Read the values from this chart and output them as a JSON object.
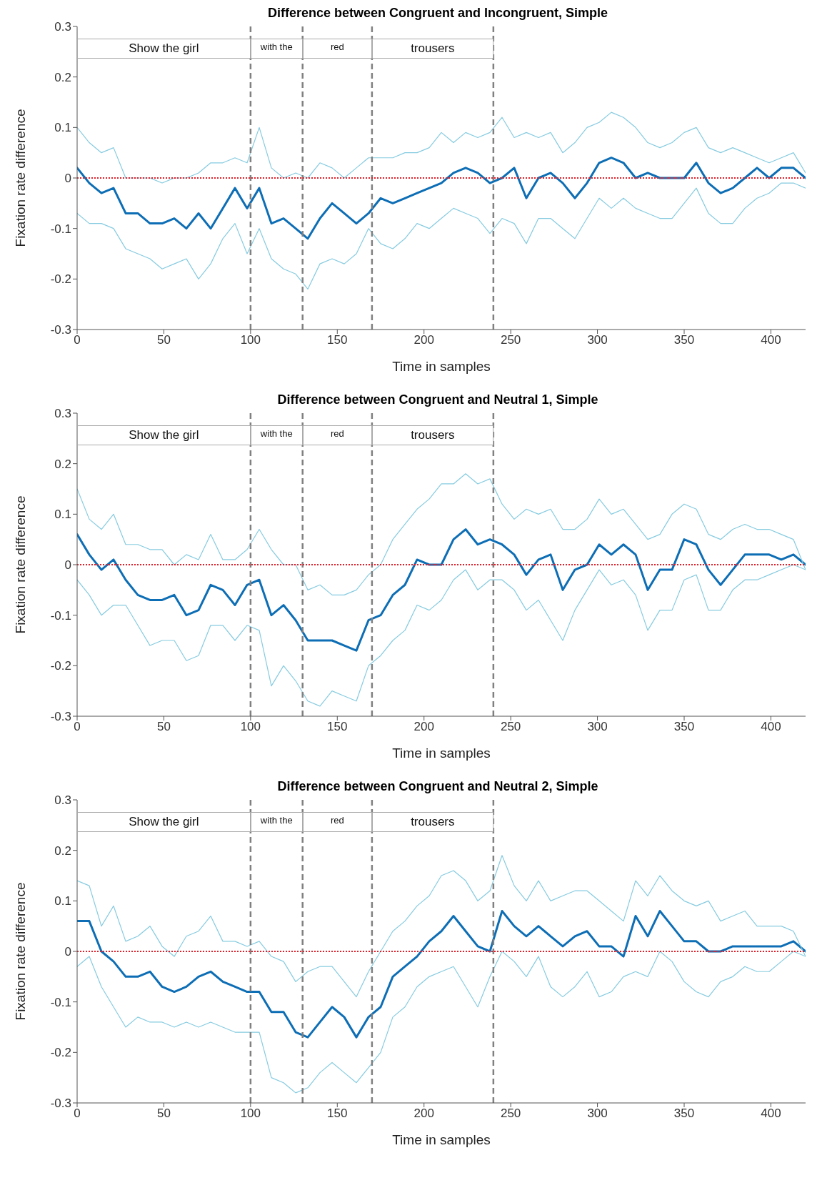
{
  "chart_data": [
    {
      "type": "line",
      "title": "Difference between Congruent and Incongruent, Simple",
      "xlabel": "Time in samples",
      "ylabel": "Fixation rate difference",
      "marker": "none",
      "grid": false,
      "xlim": [
        0,
        420
      ],
      "xticks": [
        0,
        50,
        100,
        150,
        200,
        250,
        300,
        350,
        400
      ],
      "ylim": [
        -0.3,
        0.3
      ],
      "yticks": [
        -0.3,
        -0.2,
        -0.1,
        0,
        0.1,
        0.2,
        0.3
      ],
      "x": [
        0,
        7,
        14,
        21,
        28,
        35,
        42,
        49,
        56,
        63,
        70,
        77,
        84,
        91,
        98,
        105,
        112,
        119,
        126,
        133,
        140,
        147,
        154,
        161,
        168,
        175,
        182,
        189,
        196,
        203,
        210,
        217,
        224,
        231,
        238,
        245,
        252,
        259,
        266,
        273,
        280,
        287,
        294,
        301,
        308,
        315,
        322,
        329,
        336,
        343,
        350,
        357,
        364,
        371,
        378,
        385,
        392,
        399,
        406,
        413,
        420
      ],
      "series": [
        {
          "color": "#0d6eb5",
          "values": [
            0.02,
            -0.01,
            -0.03,
            -0.02,
            -0.07,
            -0.07,
            -0.09,
            -0.09,
            -0.08,
            -0.1,
            -0.07,
            -0.1,
            -0.06,
            -0.02,
            -0.06,
            -0.02,
            -0.09,
            -0.08,
            -0.1,
            -0.12,
            -0.08,
            -0.05,
            -0.07,
            -0.09,
            -0.07,
            -0.04,
            -0.05,
            -0.04,
            -0.03,
            -0.02,
            -0.01,
            0.01,
            0.02,
            0.01,
            -0.01,
            0.0,
            0.02,
            -0.04,
            0.0,
            0.01,
            -0.01,
            -0.04,
            -0.01,
            0.03,
            0.04,
            0.03,
            0.0,
            0.01,
            0.0,
            0.0,
            0.0,
            0.03,
            -0.01,
            -0.03,
            -0.02,
            0.0,
            0.02,
            0.0,
            0.02,
            0.02,
            0.0
          ]
        },
        {
          "color": "#86cbe0",
          "values": [
            0.1,
            0.07,
            0.05,
            0.06,
            0.0,
            0.0,
            0.0,
            -0.01,
            0.0,
            0.0,
            0.01,
            0.03,
            0.03,
            0.04,
            0.03,
            0.1,
            0.02,
            0.0,
            0.01,
            0.0,
            0.03,
            0.02,
            0.0,
            0.02,
            0.04,
            0.04,
            0.04,
            0.05,
            0.05,
            0.06,
            0.09,
            0.07,
            0.09,
            0.08,
            0.09,
            0.12,
            0.08,
            0.09,
            0.08,
            0.09,
            0.05,
            0.07,
            0.1,
            0.11,
            0.13,
            0.12,
            0.1,
            0.07,
            0.06,
            0.07,
            0.09,
            0.1,
            0.06,
            0.05,
            0.06,
            0.05,
            0.04,
            0.03,
            0.04,
            0.05,
            0.01
          ]
        },
        {
          "color": "#86cbe0",
          "values": [
            -0.07,
            -0.09,
            -0.09,
            -0.1,
            -0.14,
            -0.15,
            -0.16,
            -0.18,
            -0.17,
            -0.16,
            -0.2,
            -0.17,
            -0.12,
            -0.09,
            -0.15,
            -0.1,
            -0.16,
            -0.18,
            -0.19,
            -0.22,
            -0.17,
            -0.16,
            -0.17,
            -0.15,
            -0.1,
            -0.13,
            -0.14,
            -0.12,
            -0.09,
            -0.1,
            -0.08,
            -0.06,
            -0.07,
            -0.08,
            -0.11,
            -0.08,
            -0.09,
            -0.13,
            -0.08,
            -0.08,
            -0.1,
            -0.12,
            -0.08,
            -0.04,
            -0.06,
            -0.04,
            -0.06,
            -0.07,
            -0.08,
            -0.08,
            -0.05,
            -0.02,
            -0.07,
            -0.09,
            -0.09,
            -0.06,
            -0.04,
            -0.03,
            -0.01,
            -0.01,
            -0.02
          ]
        }
      ],
      "ref_lines": [
        {
          "axis": "x",
          "value": 100,
          "color": "#808080",
          "line_style": "dashed"
        },
        {
          "axis": "x",
          "value": 130,
          "color": "#808080",
          "line_style": "dashed"
        },
        {
          "axis": "x",
          "value": 170,
          "color": "#808080",
          "line_style": "dashed"
        },
        {
          "axis": "x",
          "value": 240,
          "color": "#808080",
          "line_style": "dashed"
        },
        {
          "axis": "y",
          "value": 0,
          "color": "#e0202a",
          "line_style": "dotted"
        }
      ],
      "annotations": [
        "Show the girl",
        "with the",
        "red",
        "trousers"
      ]
    },
    {
      "type": "line",
      "title": "Difference between Congruent and Neutral 1, Simple",
      "xlabel": "Time in samples",
      "ylabel": "Fixation rate difference",
      "marker": "none",
      "grid": false,
      "xlim": [
        0,
        420
      ],
      "xticks": [
        0,
        50,
        100,
        150,
        200,
        250,
        300,
        350,
        400
      ],
      "ylim": [
        -0.3,
        0.3
      ],
      "yticks": [
        -0.3,
        -0.2,
        -0.1,
        0,
        0.1,
        0.2,
        0.3
      ],
      "x": [
        0,
        7,
        14,
        21,
        28,
        35,
        42,
        49,
        56,
        63,
        70,
        77,
        84,
        91,
        98,
        105,
        112,
        119,
        126,
        133,
        140,
        147,
        154,
        161,
        168,
        175,
        182,
        189,
        196,
        203,
        210,
        217,
        224,
        231,
        238,
        245,
        252,
        259,
        266,
        273,
        280,
        287,
        294,
        301,
        308,
        315,
        322,
        329,
        336,
        343,
        350,
        357,
        364,
        371,
        378,
        385,
        392,
        399,
        406,
        413,
        420
      ],
      "series": [
        {
          "color": "#0d6eb5",
          "values": [
            0.06,
            0.02,
            -0.01,
            0.01,
            -0.03,
            -0.06,
            -0.07,
            -0.07,
            -0.06,
            -0.1,
            -0.09,
            -0.04,
            -0.05,
            -0.08,
            -0.04,
            -0.03,
            -0.1,
            -0.08,
            -0.11,
            -0.15,
            -0.15,
            -0.15,
            -0.16,
            -0.17,
            -0.11,
            -0.1,
            -0.06,
            -0.04,
            0.01,
            0.0,
            0.0,
            0.05,
            0.07,
            0.04,
            0.05,
            0.04,
            0.02,
            -0.02,
            0.01,
            0.02,
            -0.05,
            -0.01,
            0.0,
            0.04,
            0.02,
            0.04,
            0.02,
            -0.05,
            -0.01,
            -0.01,
            0.05,
            0.04,
            -0.01,
            -0.04,
            -0.01,
            0.02,
            0.02,
            0.02,
            0.01,
            0.02,
            0.0
          ]
        },
        {
          "color": "#86cbe0",
          "values": [
            0.15,
            0.09,
            0.07,
            0.1,
            0.04,
            0.04,
            0.03,
            0.03,
            0.0,
            0.02,
            0.01,
            0.06,
            0.01,
            0.01,
            0.03,
            0.07,
            0.03,
            0.0,
            0.0,
            -0.05,
            -0.04,
            -0.06,
            -0.06,
            -0.05,
            -0.02,
            0.0,
            0.05,
            0.08,
            0.11,
            0.13,
            0.16,
            0.16,
            0.18,
            0.16,
            0.17,
            0.12,
            0.09,
            0.11,
            0.1,
            0.11,
            0.07,
            0.07,
            0.09,
            0.13,
            0.1,
            0.11,
            0.08,
            0.05,
            0.06,
            0.1,
            0.12,
            0.11,
            0.06,
            0.05,
            0.07,
            0.08,
            0.07,
            0.07,
            0.06,
            0.05,
            -0.01
          ]
        },
        {
          "color": "#86cbe0",
          "values": [
            -0.03,
            -0.06,
            -0.1,
            -0.08,
            -0.08,
            -0.12,
            -0.16,
            -0.15,
            -0.15,
            -0.19,
            -0.18,
            -0.12,
            -0.12,
            -0.15,
            -0.12,
            -0.13,
            -0.24,
            -0.2,
            -0.23,
            -0.27,
            -0.28,
            -0.25,
            -0.26,
            -0.27,
            -0.2,
            -0.18,
            -0.15,
            -0.13,
            -0.08,
            -0.09,
            -0.07,
            -0.03,
            -0.01,
            -0.05,
            -0.03,
            -0.03,
            -0.05,
            -0.09,
            -0.07,
            -0.11,
            -0.15,
            -0.09,
            -0.05,
            -0.01,
            -0.04,
            -0.03,
            -0.06,
            -0.13,
            -0.09,
            -0.09,
            -0.03,
            -0.02,
            -0.09,
            -0.09,
            -0.05,
            -0.03,
            -0.03,
            -0.02,
            -0.01,
            0.0,
            -0.01
          ]
        }
      ],
      "ref_lines": [
        {
          "axis": "x",
          "value": 100,
          "color": "#808080",
          "line_style": "dashed"
        },
        {
          "axis": "x",
          "value": 130,
          "color": "#808080",
          "line_style": "dashed"
        },
        {
          "axis": "x",
          "value": 170,
          "color": "#808080",
          "line_style": "dashed"
        },
        {
          "axis": "x",
          "value": 240,
          "color": "#808080",
          "line_style": "dashed"
        },
        {
          "axis": "y",
          "value": 0,
          "color": "#e0202a",
          "line_style": "dotted"
        }
      ],
      "annotations": [
        "Show the girl",
        "with the",
        "red",
        "trousers"
      ]
    },
    {
      "type": "line",
      "title": "Difference between Congruent and Neutral 2, Simple",
      "xlabel": "Time in samples",
      "ylabel": "Fixation rate difference",
      "marker": "none",
      "grid": false,
      "xlim": [
        0,
        420
      ],
      "xticks": [
        0,
        50,
        100,
        150,
        200,
        250,
        300,
        350,
        400
      ],
      "ylim": [
        -0.3,
        0.3
      ],
      "yticks": [
        -0.3,
        -0.2,
        -0.1,
        0,
        0.1,
        0.2,
        0.3
      ],
      "x": [
        0,
        7,
        14,
        21,
        28,
        35,
        42,
        49,
        56,
        63,
        70,
        77,
        84,
        91,
        98,
        105,
        112,
        119,
        126,
        133,
        140,
        147,
        154,
        161,
        168,
        175,
        182,
        189,
        196,
        203,
        210,
        217,
        224,
        231,
        238,
        245,
        252,
        259,
        266,
        273,
        280,
        287,
        294,
        301,
        308,
        315,
        322,
        329,
        336,
        343,
        350,
        357,
        364,
        371,
        378,
        385,
        392,
        399,
        406,
        413,
        420
      ],
      "series": [
        {
          "color": "#0d6eb5",
          "values": [
            0.06,
            0.06,
            0.0,
            -0.02,
            -0.05,
            -0.05,
            -0.04,
            -0.07,
            -0.08,
            -0.07,
            -0.05,
            -0.04,
            -0.06,
            -0.07,
            -0.08,
            -0.08,
            -0.12,
            -0.12,
            -0.16,
            -0.17,
            -0.14,
            -0.11,
            -0.13,
            -0.17,
            -0.13,
            -0.11,
            -0.05,
            -0.03,
            -0.01,
            0.02,
            0.04,
            0.07,
            0.04,
            0.01,
            0.0,
            0.08,
            0.05,
            0.03,
            0.05,
            0.03,
            0.01,
            0.03,
            0.04,
            0.01,
            0.01,
            -0.01,
            0.07,
            0.03,
            0.08,
            0.05,
            0.02,
            0.02,
            0.0,
            0.0,
            0.01,
            0.01,
            0.01,
            0.01,
            0.01,
            0.02,
            0.0
          ]
        },
        {
          "color": "#86cbe0",
          "values": [
            0.14,
            0.13,
            0.05,
            0.09,
            0.02,
            0.03,
            0.05,
            0.01,
            -0.01,
            0.03,
            0.04,
            0.07,
            0.02,
            0.02,
            0.01,
            0.02,
            -0.01,
            -0.02,
            -0.06,
            -0.04,
            -0.03,
            -0.03,
            -0.06,
            -0.09,
            -0.04,
            0.0,
            0.04,
            0.06,
            0.09,
            0.11,
            0.15,
            0.16,
            0.14,
            0.1,
            0.12,
            0.19,
            0.13,
            0.1,
            0.14,
            0.1,
            0.11,
            0.12,
            0.12,
            0.1,
            0.08,
            0.06,
            0.14,
            0.11,
            0.15,
            0.12,
            0.1,
            0.09,
            0.1,
            0.06,
            0.07,
            0.08,
            0.05,
            0.05,
            0.05,
            0.04,
            -0.01
          ]
        },
        {
          "color": "#86cbe0",
          "values": [
            -0.03,
            -0.01,
            -0.07,
            -0.11,
            -0.15,
            -0.13,
            -0.14,
            -0.14,
            -0.15,
            -0.14,
            -0.15,
            -0.14,
            -0.15,
            -0.16,
            -0.16,
            -0.16,
            -0.25,
            -0.26,
            -0.28,
            -0.27,
            -0.24,
            -0.22,
            -0.24,
            -0.26,
            -0.23,
            -0.2,
            -0.13,
            -0.11,
            -0.07,
            -0.05,
            -0.04,
            -0.03,
            -0.07,
            -0.11,
            -0.05,
            0.0,
            -0.02,
            -0.05,
            -0.01,
            -0.07,
            -0.09,
            -0.07,
            -0.04,
            -0.09,
            -0.08,
            -0.05,
            -0.04,
            -0.05,
            0.0,
            -0.02,
            -0.06,
            -0.08,
            -0.09,
            -0.06,
            -0.05,
            -0.03,
            -0.04,
            -0.04,
            -0.02,
            0.0,
            -0.01
          ]
        }
      ],
      "ref_lines": [
        {
          "axis": "x",
          "value": 100,
          "color": "#808080",
          "line_style": "dashed"
        },
        {
          "axis": "x",
          "value": 130,
          "color": "#808080",
          "line_style": "dashed"
        },
        {
          "axis": "x",
          "value": 170,
          "color": "#808080",
          "line_style": "dashed"
        },
        {
          "axis": "x",
          "value": 240,
          "color": "#808080",
          "line_style": "dashed"
        },
        {
          "axis": "y",
          "value": 0,
          "color": "#e0202a",
          "line_style": "dotted"
        }
      ],
      "annotations": [
        "Show the girl",
        "with the",
        "red",
        "trousers"
      ]
    }
  ]
}
